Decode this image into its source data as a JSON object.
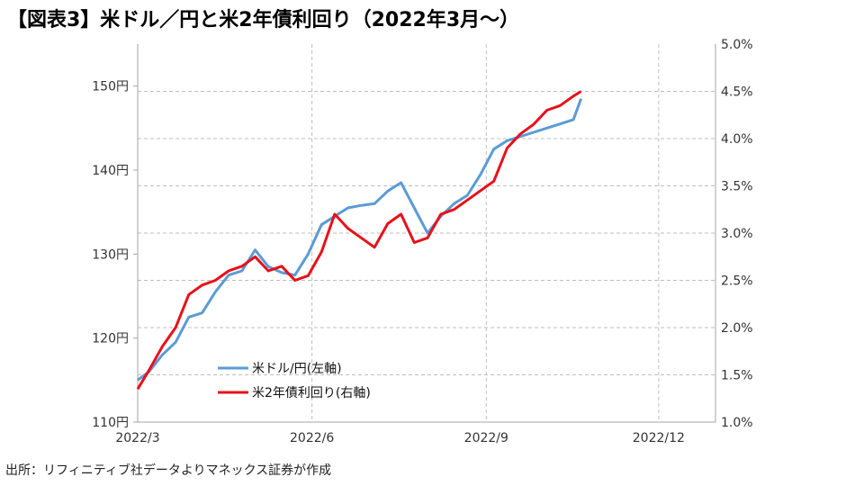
{
  "title": "【図表3】米ドル／円と米2年債利回り（2022年3月～）",
  "source": "出所：リフィニティブ社データよりマネックス証券が作成",
  "colors": {
    "usdjpy": "#5b9bd5",
    "us2y": "#e8101a",
    "grid": "#bfbfbf",
    "axis": "#a6a6a6"
  },
  "chart_data": {
    "type": "line",
    "x_ticks": [
      "2022/3",
      "2022/6",
      "2022/9",
      "2022/12"
    ],
    "x_range": [
      "2022-03-01",
      "2022-12-31"
    ],
    "y_left": {
      "ticks": [
        "110円",
        "120円",
        "130円",
        "140円",
        "150円"
      ],
      "range": [
        110,
        155
      ]
    },
    "y_right": {
      "ticks": [
        "1.0%",
        "1.5%",
        "2.0%",
        "2.5%",
        "3.0%",
        "3.5%",
        "4.0%",
        "4.5%",
        "5.0%"
      ],
      "range": [
        1.0,
        5.0
      ]
    },
    "legend": {
      "placement": "lower-left",
      "items": [
        "米ドル/円(左軸)",
        "米2年債利回り(右軸)"
      ]
    },
    "grid": true,
    "series": [
      {
        "name": "米ドル/円(左軸)",
        "axis": "left",
        "x": [
          "2022-03-01",
          "2022-03-07",
          "2022-03-14",
          "2022-03-21",
          "2022-03-28",
          "2022-04-04",
          "2022-04-11",
          "2022-04-18",
          "2022-04-25",
          "2022-05-02",
          "2022-05-09",
          "2022-05-16",
          "2022-05-23",
          "2022-05-30",
          "2022-06-06",
          "2022-06-13",
          "2022-06-20",
          "2022-06-27",
          "2022-07-04",
          "2022-07-11",
          "2022-07-18",
          "2022-07-25",
          "2022-08-01",
          "2022-08-08",
          "2022-08-15",
          "2022-08-22",
          "2022-08-29",
          "2022-09-05",
          "2022-09-12",
          "2022-09-19",
          "2022-09-26",
          "2022-10-03",
          "2022-10-10",
          "2022-10-17",
          "2022-10-21"
        ],
        "values": [
          115.0,
          116.0,
          118.0,
          119.5,
          122.5,
          123.0,
          125.5,
          127.5,
          128.0,
          130.5,
          128.5,
          127.8,
          127.5,
          130.0,
          133.5,
          134.5,
          135.5,
          135.8,
          136.0,
          137.5,
          138.5,
          135.5,
          132.5,
          134.5,
          136.0,
          137.0,
          139.5,
          142.5,
          143.5,
          144.0,
          144.5,
          145.0,
          145.5,
          146.0,
          148.5
        ]
      },
      {
        "name": "米2年債利回り(右軸)",
        "axis": "right",
        "x": [
          "2022-03-01",
          "2022-03-07",
          "2022-03-14",
          "2022-03-21",
          "2022-03-28",
          "2022-04-04",
          "2022-04-11",
          "2022-04-18",
          "2022-04-25",
          "2022-05-02",
          "2022-05-09",
          "2022-05-16",
          "2022-05-23",
          "2022-05-30",
          "2022-06-06",
          "2022-06-13",
          "2022-06-20",
          "2022-06-27",
          "2022-07-04",
          "2022-07-11",
          "2022-07-18",
          "2022-07-25",
          "2022-08-01",
          "2022-08-08",
          "2022-08-15",
          "2022-08-22",
          "2022-08-29",
          "2022-09-05",
          "2022-09-12",
          "2022-09-19",
          "2022-09-26",
          "2022-10-03",
          "2022-10-10",
          "2022-10-17",
          "2022-10-21"
        ],
        "values": [
          1.35,
          1.55,
          1.8,
          2.0,
          2.35,
          2.45,
          2.5,
          2.6,
          2.65,
          2.75,
          2.6,
          2.65,
          2.5,
          2.55,
          2.8,
          3.2,
          3.05,
          2.95,
          2.85,
          3.1,
          3.2,
          2.9,
          2.95,
          3.2,
          3.25,
          3.35,
          3.45,
          3.55,
          3.9,
          4.05,
          4.15,
          4.3,
          4.35,
          4.45,
          4.5
        ]
      }
    ]
  }
}
